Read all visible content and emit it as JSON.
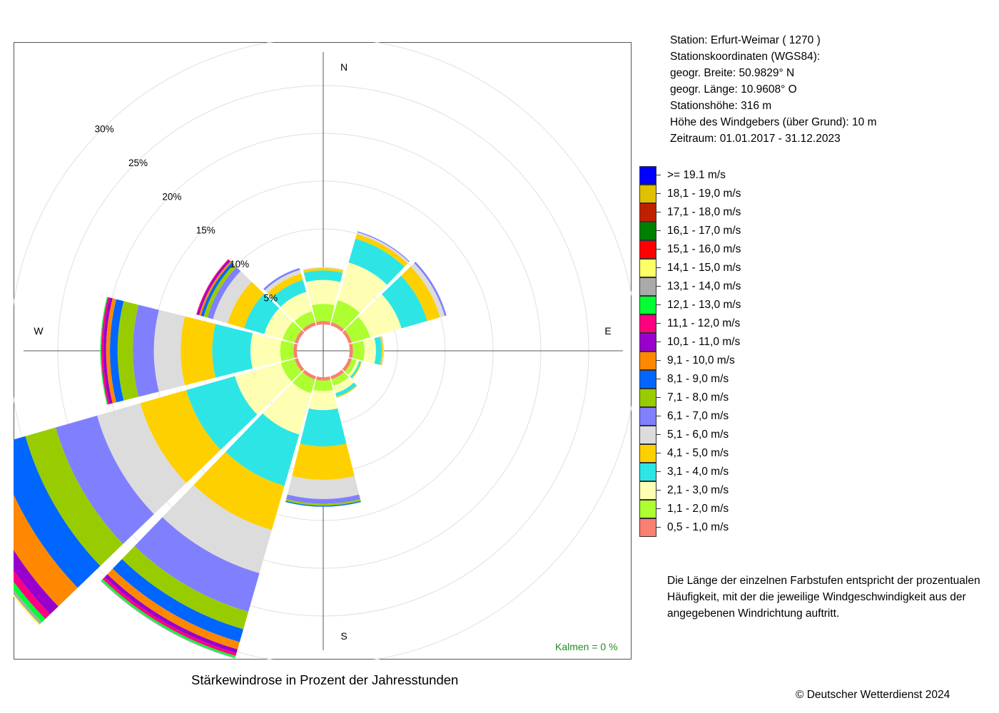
{
  "station": {
    "lines": [
      "Station:  Erfurt-Weimar  ( 1270 )",
      "Stationskoordinaten (WGS84):",
      "geogr. Breite: 50.9829° N",
      "geogr. Länge: 10.9608° O",
      "Stationshöhe: 316 m",
      "Höhe des Windgebers (über Grund): 10 m",
      "Zeitraum: 01.01.2017 - 31.12.2023"
    ]
  },
  "explanation": [
    "Die Länge der einzelnen Farbstufen entspricht der prozentualen",
    "Häufigkeit, mit der die jeweilige Windgeschwindigkeit aus der",
    "angegebenen Windrichtung auftritt."
  ],
  "copyright": "© Deutscher Wetterdienst  2024",
  "chart_data": {
    "type": "windrose",
    "title": "Stärkewindrose in Prozent der Jahresstunden",
    "calm_label": "Kalmen  =  0 %",
    "directions": [
      "N",
      "E",
      "S",
      "W"
    ],
    "ring_labels": [
      "5%",
      "10%",
      "15%",
      "20%",
      "25%",
      "30%"
    ],
    "ring_values": [
      5,
      10,
      15,
      20,
      25,
      30
    ],
    "r_max": 32,
    "bins": [
      {
        "label": "0,5 - 1,0 m/s",
        "color": "#fa8072"
      },
      {
        "label": "1,1 - 2,0 m/s",
        "color": "#adff2f"
      },
      {
        "label": "2,1 - 3,0 m/s",
        "color": "#ffffb3"
      },
      {
        "label": "3,1 - 4,0 m/s",
        "color": "#2ee5e5"
      },
      {
        "label": "4,1 - 5,0 m/s",
        "color": "#ffd000"
      },
      {
        "label": "5,1 - 6,0 m/s",
        "color": "#dcdcdc"
      },
      {
        "label": "6,1 - 7,0 m/s",
        "color": "#8080ff"
      },
      {
        "label": "7,1 - 8,0 m/s",
        "color": "#99cc00"
      },
      {
        "label": "8,1 - 9,0 m/s",
        "color": "#0066ff"
      },
      {
        "label": "9,1 - 10,0 m/s",
        "color": "#ff8800"
      },
      {
        "label": "10,1 - 11,0 m/s",
        "color": "#9900cc"
      },
      {
        "label": "11,1 - 12,0 m/s",
        "color": "#ff0080"
      },
      {
        "label": "12,1 - 13,0 m/s",
        "color": "#00ff33"
      },
      {
        "label": "13,1 - 14,0 m/s",
        "color": "#aaaaaa"
      },
      {
        "label": "14,1 - 15,0 m/s",
        "color": "#ffff66"
      },
      {
        "label": "15,1 - 16,0 m/s",
        "color": "#ff0000"
      },
      {
        "label": "16,1 - 17,0 m/s",
        "color": "#008000"
      },
      {
        "label": "17,1 - 18,0 m/s",
        "color": "#c02000"
      },
      {
        "label": "18,1 - 19,0 m/s",
        "color": "#e0c000"
      },
      {
        "label": ">= 19.1 m/s",
        "color": "#0000ff"
      }
    ],
    "sectors": [
      {
        "angle": 0,
        "values": [
          0.35,
          1.8,
          2.5,
          1.0,
          0.25,
          0.1
        ]
      },
      {
        "angle": 30,
        "values": [
          0.35,
          2.4,
          4.1,
          2.6,
          0.5,
          0.2,
          0.1
        ]
      },
      {
        "angle": 60,
        "values": [
          0.35,
          2.0,
          3.4,
          2.8,
          1.4,
          0.5,
          0.2
        ]
      },
      {
        "angle": 90,
        "values": [
          0.35,
          1.2,
          1.2,
          0.6,
          0.15,
          0.1
        ]
      },
      {
        "angle": 120,
        "values": [
          0.35,
          0.5,
          0.3,
          0.2,
          0.1
        ]
      },
      {
        "angle": 150,
        "values": [
          0.35,
          0.7,
          0.8,
          0.4,
          0.1
        ]
      },
      {
        "angle": 180,
        "values": [
          0.35,
          1.1,
          2.0,
          3.8,
          3.5,
          2.0,
          0.5,
          0.2,
          0.1
        ]
      },
      {
        "angle": 210,
        "values": [
          0.35,
          1.5,
          4.5,
          5.6,
          4.8,
          4.7,
          4.2,
          1.9,
          1.4,
          0.8,
          0.4,
          0.3,
          0.2,
          0.1
        ]
      },
      {
        "angle": 240,
        "values": [
          0.35,
          1.5,
          5.0,
          5.3,
          5.0,
          4.7,
          4.5,
          3.3,
          3.3,
          2.8,
          1.2,
          0.7,
          0.5,
          0.3,
          0.15
        ]
      },
      {
        "angle": 270,
        "values": [
          0.35,
          1.4,
          3.1,
          4.0,
          3.3,
          2.8,
          2.2,
          1.6,
          0.8,
          0.4,
          0.3,
          0.2,
          0.1
        ]
      },
      {
        "angle": 300,
        "values": [
          0.35,
          1.3,
          2.0,
          2.2,
          1.8,
          1.6,
          0.6,
          0.4,
          0.3,
          0.2,
          0.2,
          0.1
        ]
      },
      {
        "angle": 330,
        "values": [
          0.35,
          1.2,
          2.1,
          1.3,
          0.7,
          0.4,
          0.2
        ]
      }
    ]
  }
}
